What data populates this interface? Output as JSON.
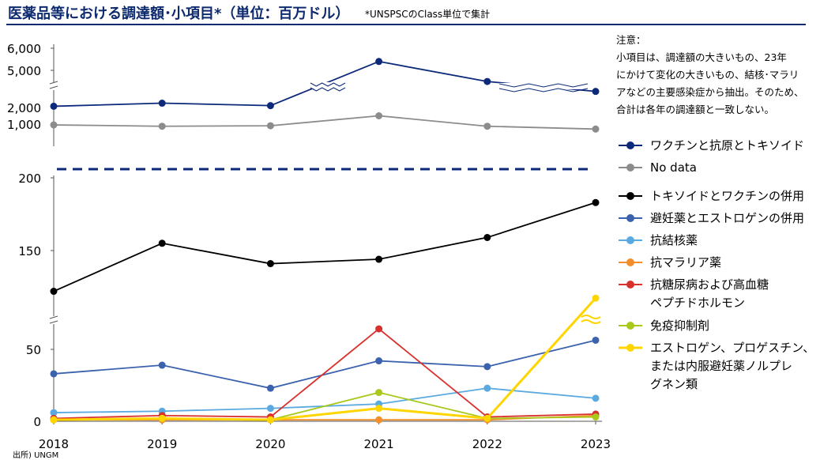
{
  "header": {
    "title": "医薬品等における調達額･小項目*（単位：百万ドル）",
    "subtitle": "*UNSPSCのClass単位で集計"
  },
  "note": {
    "lines": [
      "注意：",
      "小項目は、調達額の大きいもの、23年",
      "にかけて変化の大きいもの、結核･マラリ",
      "アなどの主要感染症から抽出。そのため、",
      "合計は各年の調達額と一致しない。"
    ]
  },
  "source": "出所) UNGM",
  "chart_data": {
    "type": "line",
    "x": [
      2018,
      2019,
      2020,
      2021,
      2022,
      2023
    ],
    "panels": [
      {
        "name": "upper",
        "yticks": [
          "1,000",
          "2,000",
          "5,000",
          "6,000"
        ]
      },
      {
        "name": "middle",
        "yticks": [
          "150",
          "200"
        ]
      },
      {
        "name": "lower",
        "yticks": [
          "0",
          "50"
        ]
      }
    ],
    "series": [
      {
        "name": "ワクチンと抗原とトキソイド",
        "color": "#0d2a7a",
        "values": [
          2100,
          2350,
          2150,
          5400,
          4100,
          3300
        ]
      },
      {
        "name": "No data",
        "color": "#8c8c8c",
        "values": [
          950,
          870,
          900,
          1500,
          870,
          700
        ]
      },
      {
        "name": "トキソイドとワクチンの併用",
        "color": "#000000",
        "values": [
          122,
          155,
          141,
          144,
          159,
          183
        ]
      },
      {
        "name": "避妊薬とエストロゲンの併用",
        "color": "#3a62ad",
        "values": [
          33,
          39,
          23,
          42,
          38,
          58
        ]
      },
      {
        "name": "抗結核薬",
        "color": "#5aa9e0",
        "values": [
          6,
          7,
          9,
          12,
          23,
          16
        ]
      },
      {
        "name": "抗マラリア薬",
        "color": "#f28e2b",
        "values": [
          1,
          1,
          1,
          1,
          1,
          4
        ]
      },
      {
        "name": "抗糖尿病および高血糖ペプチドホルモン",
        "color": "#d9302c",
        "values": [
          2,
          4,
          3,
          68,
          3,
          5
        ]
      },
      {
        "name": "免疫抑制剤",
        "color": "#a8c81b",
        "values": [
          1,
          2,
          1,
          20,
          2,
          3
        ]
      },
      {
        "name": "エストロゲン、プロゲスチン、または内服避妊薬ノルプレグネン類",
        "color": "#ffd500",
        "values": [
          1,
          2,
          1,
          9,
          2,
          95
        ]
      }
    ]
  },
  "legend": [
    {
      "label": "ワクチンと抗原とトキソイド",
      "color": "#0d2a7a"
    },
    {
      "label": "No data",
      "color": "#8c8c8c"
    },
    {
      "label": "トキソイドとワクチンの併用",
      "color": "#000000"
    },
    {
      "label": "避妊薬とエストロゲンの併用",
      "color": "#3a62ad"
    },
    {
      "label": "抗結核薬",
      "color": "#5aa9e0"
    },
    {
      "label": "抗マラリア薬",
      "color": "#f28e2b"
    },
    {
      "label1": "抗糖尿病および高血糖",
      "label2": "ペプチドホルモン",
      "color": "#d9302c"
    },
    {
      "label": "免疫抑制剤",
      "color": "#a8c81b"
    },
    {
      "label1": "エストロゲン、プロゲスチン、",
      "label2": "または内服避妊薬ノルプレ",
      "label3": "グネン類",
      "color": "#ffd500"
    }
  ]
}
